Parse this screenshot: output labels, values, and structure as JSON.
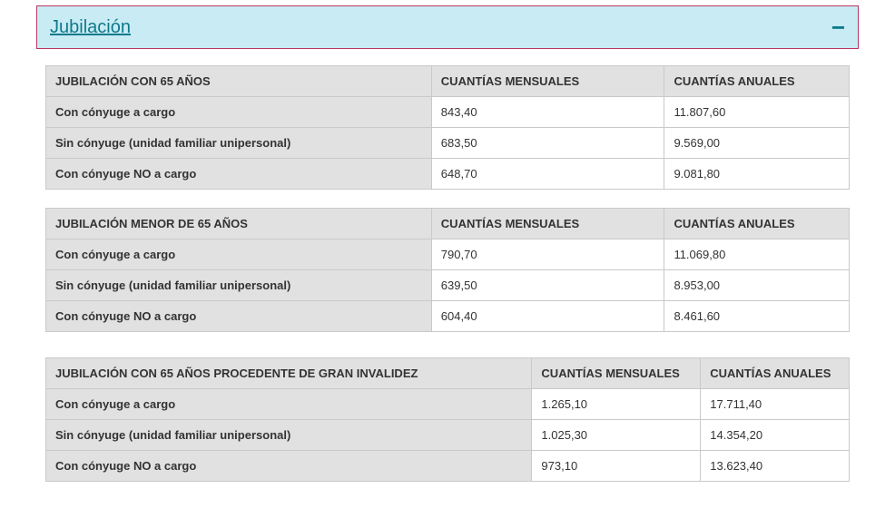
{
  "colors": {
    "header_bg": "#c8ebf4",
    "header_border": "#b8365f",
    "header_text": "#0d7a8a",
    "table_border": "#c9c9c9",
    "th_bg": "#e1e1e1",
    "td_bg": "#ffffff",
    "text": "#333333"
  },
  "accordion": {
    "title": "Jubilación",
    "collapse_glyph": "−"
  },
  "tables": [
    {
      "layout": "a",
      "headers": [
        "JUBILACIÓN CON 65 AÑOS",
        "CUANTÍAS MENSUALES",
        "CUANTÍAS ANUALES"
      ],
      "rows": [
        {
          "label": "Con cónyuge a cargo",
          "mensual": "843,40",
          "anual": "11.807,60"
        },
        {
          "label": "Sin cónyuge (unidad familiar unipersonal)",
          "mensual": "683,50",
          "anual": "9.569,00"
        },
        {
          "label": "Con cónyuge NO a cargo",
          "mensual": "648,70",
          "anual": "9.081,80"
        }
      ]
    },
    {
      "layout": "a",
      "headers": [
        "JUBILACIÓN MENOR DE 65 AÑOS",
        "CUANTÍAS MENSUALES",
        "CUANTÍAS ANUALES"
      ],
      "rows": [
        {
          "label": "Con cónyuge a cargo",
          "mensual": "790,70",
          "anual": "11.069,80"
        },
        {
          "label": "Sin cónyuge (unidad familiar unipersonal)",
          "mensual": "639,50",
          "anual": " 8.953,00"
        },
        {
          "label": "Con cónyuge NO a cargo",
          "mensual": "604,40",
          "anual": "8.461,60"
        }
      ]
    },
    {
      "layout": "b",
      "extra_gap": true,
      "headers": [
        "JUBILACIÓN CON 65 AÑOS PROCEDENTE DE GRAN INVALIDEZ",
        "CUANTÍAS MENSUALES",
        "CUANTÍAS ANUALES"
      ],
      "rows": [
        {
          "label": "Con cónyuge a cargo",
          "mensual": "1.265,10",
          "anual": "17.711,40"
        },
        {
          "label": "Sin cónyuge (unidad familiar unipersonal)",
          "mensual": "1.025,30",
          "anual": "14.354,20"
        },
        {
          "label": "Con cónyuge NO a cargo",
          "mensual": "973,10",
          "anual": "13.623,40"
        }
      ]
    }
  ]
}
